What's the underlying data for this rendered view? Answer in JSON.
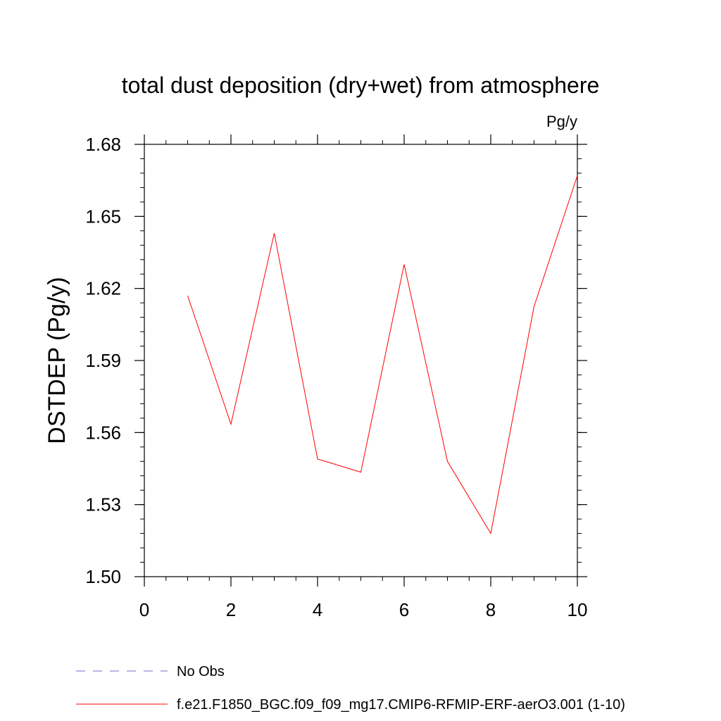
{
  "chart_data": {
    "type": "line",
    "title": "total dust deposition (dry+wet) from atmosphere",
    "unit_label": "Pg/y",
    "xlabel": "",
    "ylabel": "DSTDEP  (Pg/y)",
    "xlim": [
      0,
      10
    ],
    "ylim": [
      1.5,
      1.68
    ],
    "x_ticks": [
      "0",
      "2",
      "4",
      "6",
      "8",
      "10"
    ],
    "y_ticks": [
      "1.50",
      "1.53",
      "1.56",
      "1.59",
      "1.62",
      "1.65",
      "1.68"
    ],
    "grid": false,
    "legend_position": "bottom-left",
    "series": [
      {
        "name": "f.e21.F1850_BGC.f09_f09_mg17.CMIP6-RFMIP-ERF-aerO3.001 (1-10)",
        "color": "#ff0000",
        "style": "solid",
        "x": [
          1,
          2,
          3,
          4,
          5,
          6,
          7,
          8,
          9,
          10
        ],
        "y": [
          1.617,
          1.5635,
          1.643,
          1.549,
          1.5435,
          1.63,
          1.548,
          1.518,
          1.6125,
          1.667
        ]
      },
      {
        "name": "No Obs",
        "color": "#7b68c8",
        "style": "dashed",
        "x": [],
        "y": []
      }
    ]
  }
}
